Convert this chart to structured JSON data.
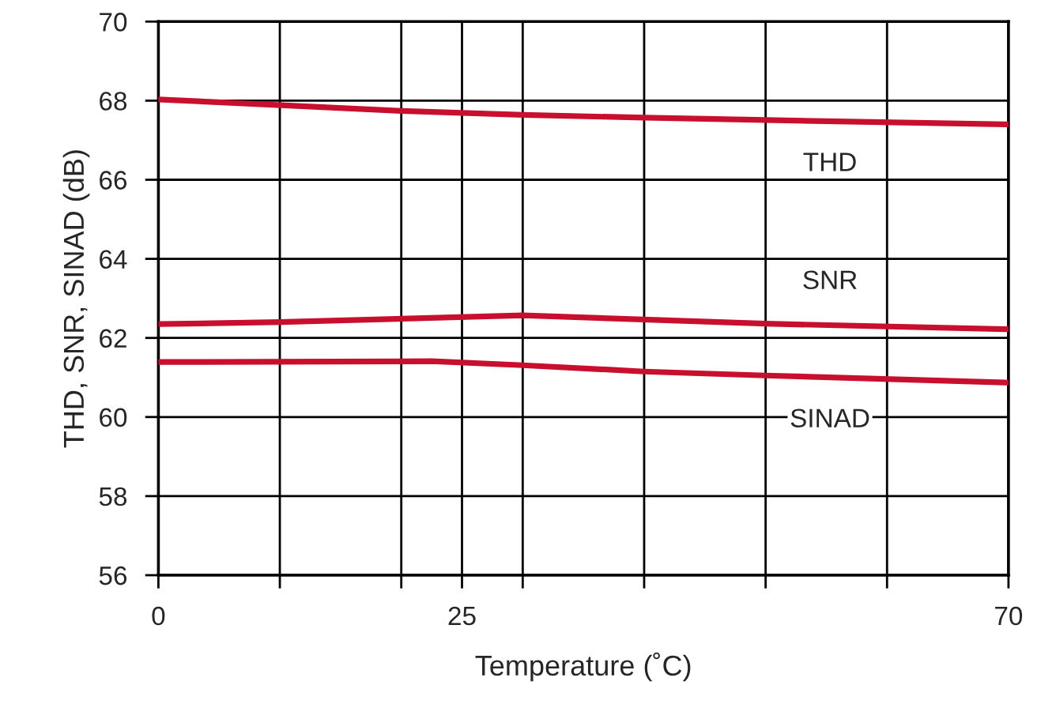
{
  "chart_data": {
    "type": "line",
    "xlabel": "Temperature (˚C)",
    "ylabel": "THD, SNR, SINAD (dB)",
    "xlim": [
      0,
      70
    ],
    "ylim": [
      56,
      70
    ],
    "xticks": [
      0,
      {
        "value": 10,
        "label": null
      },
      {
        "value": 20,
        "label": null
      },
      25,
      {
        "value": 30,
        "label": null
      },
      {
        "value": 40,
        "label": null
      },
      {
        "value": 50,
        "label": null
      },
      {
        "value": 60,
        "label": null
      },
      70
    ],
    "yticks": [
      56,
      58,
      60,
      62,
      64,
      66,
      68,
      70
    ],
    "grid": true,
    "marker": "none",
    "line_style": "solid",
    "series": [
      {
        "name": "THD",
        "color": "#c8102e",
        "x": [
          0,
          7,
          20,
          30,
          40,
          50,
          70
        ],
        "values": [
          68.03,
          67.93,
          67.74,
          67.64,
          67.57,
          67.51,
          67.4
        ]
      },
      {
        "name": "SNR",
        "color": "#c8102e",
        "x": [
          0,
          10,
          30,
          50,
          70
        ],
        "values": [
          62.35,
          62.4,
          62.57,
          62.36,
          62.22
        ]
      },
      {
        "name": "SINAD",
        "color": "#c8102e",
        "x": [
          0,
          22.5,
          30,
          40,
          50,
          70
        ],
        "values": [
          61.39,
          61.41,
          61.31,
          61.15,
          61.05,
          60.87
        ]
      }
    ]
  }
}
